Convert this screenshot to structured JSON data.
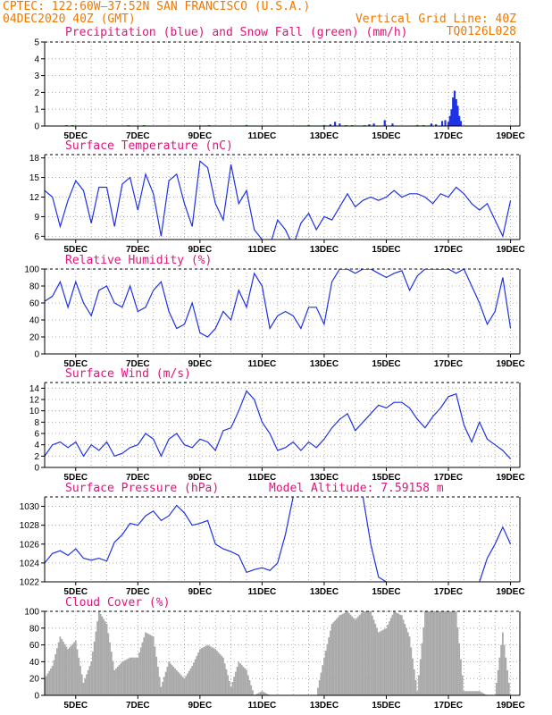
{
  "header": {
    "line1": "CPTEC:   122:60W–37:52N   SAN FRANCISCO (U.S.A.)",
    "line2": "04DEC2020 40Z (GMT)",
    "grid_note": "Vertical Grid Line: 40Z",
    "code": "TQ0126L028"
  },
  "colors": {
    "header": "#f07800",
    "panel_title": "#e0147a",
    "line": "#1e32e6",
    "precip": "#1e32e6",
    "snow": "#2ca02c",
    "cloud": "#aaaaaa"
  },
  "x_ticks": [
    "5DEC",
    "7DEC",
    "9DEC",
    "11DEC",
    "13DEC",
    "15DEC",
    "17DEC",
    "19DEC"
  ],
  "chart_data": [
    {
      "type": "bar",
      "title": "Precipitation (blue) and Snow Fall (green) (mm/h)",
      "ylim": [
        0,
        5
      ],
      "yticks": [
        0,
        1,
        2,
        3,
        4,
        5
      ],
      "grid": true,
      "series": [
        {
          "name": "Precipitation",
          "x": [
            13.2,
            13.35,
            13.5,
            14.45,
            14.6,
            14.95,
            15.2,
            16.45,
            16.6,
            16.8,
            16.9,
            17.0,
            17.05,
            17.1,
            17.15,
            17.2,
            17.25,
            17.3,
            17.35,
            17.4
          ],
          "values": [
            0.1,
            0.25,
            0.15,
            0.1,
            0.15,
            0.35,
            0.15,
            0.15,
            0.1,
            0.3,
            0.35,
            0.25,
            0.6,
            1.0,
            1.7,
            2.1,
            1.6,
            1.2,
            0.6,
            0.3
          ]
        },
        {
          "name": "Snow Fall",
          "x": [
            4.7,
            4.9,
            6.7,
            7.2,
            9.3,
            10.5,
            12.5,
            13.0,
            13.7,
            13.9,
            14.3,
            16.0,
            16.2
          ],
          "values": [
            0.05,
            0.05,
            0.05,
            0.05,
            0.05,
            0.05,
            0.05,
            0.05,
            0.05,
            0.05,
            0.05,
            0.05,
            0.05
          ]
        }
      ]
    },
    {
      "type": "line",
      "title": "Surface Temperature (nC)",
      "ylim": [
        5.5,
        18.5
      ],
      "yticks": [
        6,
        9,
        12,
        15,
        18
      ],
      "grid": true,
      "series": [
        {
          "name": "Surface Temperature",
          "x": [
            4.0,
            4.25,
            4.5,
            4.75,
            5.0,
            5.25,
            5.5,
            5.75,
            6.0,
            6.25,
            6.5,
            6.75,
            7.0,
            7.25,
            7.5,
            7.75,
            8.0,
            8.25,
            8.5,
            8.75,
            9.0,
            9.25,
            9.5,
            9.75,
            10.0,
            10.25,
            10.5,
            10.75,
            11.0,
            11.25,
            11.5,
            11.75,
            12.0,
            12.25,
            12.5,
            12.75,
            13.0,
            13.25,
            13.5,
            13.75,
            14.0,
            14.25,
            14.5,
            14.75,
            15.0,
            15.25,
            15.5,
            15.75,
            16.0,
            16.25,
            16.5,
            16.75,
            17.0,
            17.25,
            17.5,
            17.75,
            18.0,
            18.25,
            18.5,
            18.75,
            19.0
          ],
          "values": [
            13.0,
            12.0,
            7.5,
            11.5,
            14.5,
            13.0,
            8.0,
            13.5,
            13.5,
            7.5,
            14.0,
            15.0,
            10.0,
            15.5,
            12.5,
            6.0,
            14.5,
            15.5,
            11.0,
            7.5,
            17.5,
            16.5,
            11.0,
            8.5,
            17.0,
            11.0,
            13.0,
            7.0,
            5.5,
            4.5,
            8.5,
            7.0,
            4.5,
            8.0,
            9.5,
            7.0,
            9.0,
            8.5,
            10.5,
            12.5,
            10.5,
            11.5,
            12.0,
            11.5,
            12.0,
            13.0,
            12.0,
            12.5,
            12.5,
            12.0,
            11.0,
            12.5,
            12.0,
            13.5,
            12.5,
            11.0,
            10.0,
            11.0,
            8.5,
            6.0,
            11.5
          ]
        }
      ]
    },
    {
      "type": "line",
      "title": "Relative Humidity (%)",
      "ylim": [
        0,
        100
      ],
      "yticks": [
        0,
        20,
        40,
        60,
        80,
        100
      ],
      "grid": true,
      "series": [
        {
          "name": "Relative Humidity",
          "x": [
            4.0,
            4.25,
            4.5,
            4.75,
            5.0,
            5.25,
            5.5,
            5.75,
            6.0,
            6.25,
            6.5,
            6.75,
            7.0,
            7.25,
            7.5,
            7.75,
            8.0,
            8.25,
            8.5,
            8.75,
            9.0,
            9.25,
            9.5,
            9.75,
            10.0,
            10.25,
            10.5,
            10.75,
            11.0,
            11.25,
            11.5,
            11.75,
            12.0,
            12.25,
            12.5,
            12.75,
            13.0,
            13.25,
            13.5,
            13.75,
            14.0,
            14.25,
            14.5,
            14.75,
            15.0,
            15.25,
            15.5,
            15.75,
            16.0,
            16.25,
            16.5,
            16.75,
            17.0,
            17.25,
            17.5,
            17.75,
            18.0,
            18.25,
            18.5,
            18.75,
            19.0
          ],
          "values": [
            62,
            68,
            85,
            55,
            85,
            60,
            45,
            75,
            80,
            60,
            55,
            80,
            50,
            55,
            75,
            85,
            50,
            30,
            35,
            60,
            25,
            20,
            30,
            50,
            40,
            75,
            55,
            95,
            80,
            30,
            45,
            50,
            45,
            30,
            55,
            55,
            35,
            85,
            100,
            100,
            95,
            100,
            100,
            95,
            90,
            95,
            98,
            75,
            92,
            100,
            100,
            100,
            100,
            95,
            100,
            80,
            60,
            35,
            50,
            90,
            30
          ]
        }
      ]
    },
    {
      "type": "line",
      "title": "Surface Wind (m/s)",
      "ylim": [
        0,
        15
      ],
      "yticks": [
        0,
        2,
        4,
        6,
        8,
        10,
        12,
        14
      ],
      "grid": true,
      "series": [
        {
          "name": "Surface Wind",
          "x": [
            4.0,
            4.25,
            4.5,
            4.75,
            5.0,
            5.25,
            5.5,
            5.75,
            6.0,
            6.25,
            6.5,
            6.75,
            7.0,
            7.25,
            7.5,
            7.75,
            8.0,
            8.25,
            8.5,
            8.75,
            9.0,
            9.25,
            9.5,
            9.75,
            10.0,
            10.25,
            10.5,
            10.75,
            11.0,
            11.25,
            11.5,
            11.75,
            12.0,
            12.25,
            12.5,
            12.75,
            13.0,
            13.25,
            13.5,
            13.75,
            14.0,
            14.25,
            14.5,
            14.75,
            15.0,
            15.25,
            15.5,
            15.75,
            16.0,
            16.25,
            16.5,
            16.75,
            17.0,
            17.25,
            17.5,
            17.75,
            18.0,
            18.25,
            18.5,
            18.75,
            19.0
          ],
          "values": [
            2.0,
            4.0,
            4.5,
            3.5,
            4.5,
            2.0,
            4.0,
            3.0,
            4.5,
            2.0,
            2.5,
            3.5,
            4.0,
            6.0,
            5.0,
            2.0,
            5.0,
            6.0,
            4.0,
            3.5,
            5.0,
            4.5,
            3.0,
            6.5,
            7.0,
            10.0,
            13.5,
            12.0,
            8.0,
            6.0,
            3.0,
            3.5,
            4.5,
            3.0,
            4.5,
            3.5,
            5.0,
            7.0,
            8.5,
            9.5,
            6.5,
            8.0,
            9.5,
            11.0,
            10.5,
            11.5,
            11.5,
            10.5,
            8.5,
            7.0,
            9.0,
            10.5,
            12.5,
            13.0,
            7.5,
            4.5,
            8.0,
            5.0,
            4.0,
            3.0,
            1.5
          ]
        }
      ]
    },
    {
      "type": "line",
      "title": "Surface Pressure (hPa)",
      "annotation": "Model Altitude: 7.59158 m",
      "ylim": [
        1022,
        1031
      ],
      "yticks": [
        1022,
        1024,
        1026,
        1028,
        1030
      ],
      "grid": true,
      "series": [
        {
          "name": "Surface Pressure",
          "x": [
            4.0,
            4.25,
            4.5,
            4.75,
            5.0,
            5.25,
            5.5,
            5.75,
            6.0,
            6.25,
            6.5,
            6.75,
            7.0,
            7.25,
            7.5,
            7.75,
            8.0,
            8.25,
            8.5,
            8.75,
            9.0,
            9.25,
            9.5,
            9.75,
            10.0,
            10.25,
            10.5,
            10.75,
            11.0,
            11.25,
            11.5,
            11.75,
            12.0,
            12.25,
            12.5,
            12.75,
            13.0,
            13.25,
            13.5,
            13.75,
            14.0,
            14.25,
            14.5,
            14.75,
            15.0,
            15.25,
            15.5,
            15.75,
            16.0,
            16.25,
            16.5,
            16.75,
            17.0,
            17.25,
            17.5,
            17.75,
            18.0,
            18.25,
            18.5,
            18.75,
            19.0
          ],
          "values": [
            1024.0,
            1025.0,
            1025.3,
            1024.8,
            1025.5,
            1024.5,
            1024.3,
            1024.5,
            1024.2,
            1026.2,
            1027.0,
            1028.2,
            1028.0,
            1029.0,
            1029.5,
            1028.5,
            1029.0,
            1030.1,
            1029.3,
            1028.0,
            1028.2,
            1028.5,
            1026.0,
            1025.5,
            1025.2,
            1024.8,
            1023.0,
            1023.3,
            1023.5,
            1023.2,
            1024.0,
            1027.0,
            1031.0,
            null,
            null,
            null,
            null,
            null,
            null,
            null,
            null,
            1031.0,
            1026.0,
            1022.5,
            1022.0,
            null,
            null,
            null,
            null,
            null,
            null,
            null,
            null,
            null,
            null,
            null,
            1022.0,
            1024.5,
            1026.0,
            1027.8,
            1026.0
          ]
        }
      ]
    },
    {
      "type": "bar",
      "title": "Cloud Cover (%)",
      "ylim": [
        0,
        100
      ],
      "yticks": [
        0,
        20,
        40,
        60,
        80,
        100
      ],
      "grid": true,
      "series": [
        {
          "name": "Cloud Cover",
          "x": [
            4.0,
            4.25,
            4.5,
            4.75,
            5.0,
            5.25,
            5.5,
            5.75,
            6.0,
            6.25,
            6.5,
            6.75,
            7.0,
            7.25,
            7.5,
            7.75,
            8.0,
            8.25,
            8.5,
            8.75,
            9.0,
            9.25,
            9.5,
            9.75,
            10.0,
            10.25,
            10.5,
            10.75,
            11.0,
            11.25,
            11.5,
            11.75,
            12.0,
            12.25,
            12.5,
            12.75,
            13.0,
            13.25,
            13.5,
            13.75,
            14.0,
            14.25,
            14.5,
            14.75,
            15.0,
            15.25,
            15.5,
            15.75,
            16.0,
            16.25,
            16.5,
            16.75,
            17.0,
            17.25,
            17.5,
            17.75,
            18.0,
            18.25,
            18.5,
            18.75,
            19.0
          ],
          "values": [
            20,
            35,
            70,
            55,
            65,
            15,
            40,
            100,
            85,
            30,
            40,
            45,
            45,
            75,
            70,
            10,
            40,
            30,
            20,
            35,
            55,
            60,
            55,
            45,
            10,
            40,
            30,
            0,
            5,
            0,
            0,
            0,
            0,
            0,
            0,
            0,
            45,
            85,
            95,
            100,
            90,
            100,
            100,
            75,
            80,
            100,
            95,
            70,
            5,
            100,
            100,
            100,
            100,
            100,
            5,
            5,
            5,
            0,
            0,
            75,
            0
          ]
        }
      ]
    }
  ]
}
